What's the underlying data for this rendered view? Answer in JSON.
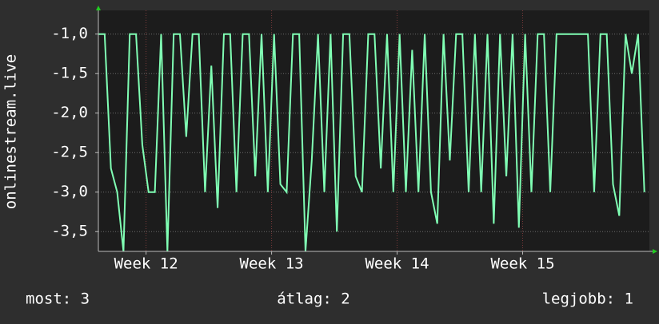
{
  "chart_data": {
    "type": "line",
    "ylabel": "onlinestream.live",
    "x": [
      11.62,
      11.67,
      11.72,
      11.77,
      11.82,
      11.87,
      11.92,
      11.97,
      12.02,
      12.07,
      12.12,
      12.17,
      12.22,
      12.27,
      12.32,
      12.37,
      12.42,
      12.47,
      12.52,
      12.57,
      12.62,
      12.67,
      12.72,
      12.77,
      12.82,
      12.87,
      12.92,
      12.97,
      13.02,
      13.07,
      13.12,
      13.17,
      13.22,
      13.27,
      13.32,
      13.37,
      13.42,
      13.47,
      13.52,
      13.57,
      13.62,
      13.67,
      13.72,
      13.77,
      13.82,
      13.87,
      13.92,
      13.97,
      14.02,
      14.07,
      14.12,
      14.17,
      14.22,
      14.27,
      14.32,
      14.37,
      14.42,
      14.47,
      14.52,
      14.57,
      14.62,
      14.67,
      14.72,
      14.77,
      14.82,
      14.87,
      14.92,
      14.97,
      15.02,
      15.07,
      15.12,
      15.17,
      15.22,
      15.27,
      15.32,
      15.37,
      15.42,
      15.47,
      15.52,
      15.57,
      15.62,
      15.67,
      15.72,
      15.77,
      15.82,
      15.87,
      15.92,
      15.97
    ],
    "series": [
      {
        "color": "#80ffb4",
        "values": [
          -1,
          -1,
          -2.7,
          -3,
          -3.75,
          -1,
          -1,
          -2.4,
          -3,
          -3,
          -1,
          -3.75,
          -1,
          -1,
          -2.3,
          -1,
          -1,
          -3,
          -1.4,
          -3.2,
          -1,
          -1,
          -3,
          -1,
          -1,
          -2.8,
          -1,
          -3,
          -1,
          -2.9,
          -3,
          -1,
          -1,
          -3.75,
          -2.6,
          -1,
          -3,
          -1,
          -3.5,
          -1,
          -1,
          -2.8,
          -3,
          -1,
          -1,
          -2.7,
          -1,
          -3,
          -1,
          -3,
          -1.2,
          -3,
          -1,
          -3,
          -3.4,
          -1,
          -2.6,
          -1,
          -1,
          -3,
          -1,
          -3,
          -1,
          -3.4,
          -1,
          -2.8,
          -1,
          -3.45,
          -1,
          -3,
          -1,
          -1,
          -3,
          -1,
          -1,
          -1,
          -1,
          -1,
          -1,
          -3,
          -1,
          -1,
          -2.9,
          -3.3,
          -1,
          -1.5,
          -1,
          -3
        ]
      }
    ],
    "xlim": [
      11.62,
      16.01
    ],
    "xticks": [
      {
        "value": 12,
        "label": "Week 12"
      },
      {
        "value": 13,
        "label": "Week 13"
      },
      {
        "value": 14,
        "label": "Week 14"
      },
      {
        "value": 15,
        "label": "Week 15"
      }
    ],
    "ylim": [
      -3.75,
      -0.7
    ],
    "yticks": [
      {
        "value": -1,
        "label": "-1,0"
      },
      {
        "value": -1.5,
        "label": "-1,5"
      },
      {
        "value": -2,
        "label": "-2,0"
      },
      {
        "value": -2.5,
        "label": "-2,5"
      },
      {
        "value": -3,
        "label": "-3,0"
      },
      {
        "value": -3.5,
        "label": "-3,5"
      }
    ],
    "grid": true,
    "legend_items": [
      "most: 3",
      "átlag: 2",
      "legjobb: 1"
    ]
  }
}
